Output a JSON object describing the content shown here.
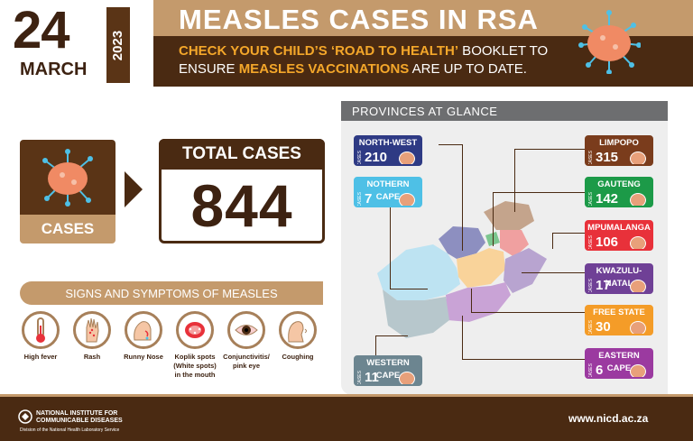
{
  "header": {
    "day": "24",
    "month": "MARCH",
    "year": "2023",
    "title": "MEASLES CASES IN RSA",
    "sub_line1_hl": "CHECK YOUR CHILD’S ‘ROAD TO HEALTH’",
    "sub_line1_rest": " BOOKLET TO",
    "sub_line2_a": "ENSURE ",
    "sub_line2_hl": "MEASLES VACCINATIONS",
    "sub_line2_rest": " ARE UP TO DATE."
  },
  "cases": {
    "label": "CASES",
    "total_label": "TOTAL CASES",
    "total_value": "844"
  },
  "symptoms": {
    "heading": "SIGNS AND SYMPTOMS OF MEASLES",
    "items": [
      {
        "label": "High fever",
        "icon": "thermometer-icon"
      },
      {
        "label": "Rash",
        "icon": "rash-hand-icon"
      },
      {
        "label": "Runny Nose",
        "icon": "runny-nose-icon"
      },
      {
        "label": "Koplik spots (White spots) in the mouth",
        "icon": "mouth-icon"
      },
      {
        "label": "Conjunctivitis/ pink eye",
        "icon": "eye-icon"
      },
      {
        "label": "Coughing",
        "icon": "coughing-icon"
      }
    ]
  },
  "provinces": {
    "heading": "PROVINCES AT GLANCE",
    "cases_word": "CASES",
    "items": [
      {
        "name": "NORTH-WEST",
        "cases": "210",
        "color": "#2e3a84"
      },
      {
        "name": "NOTHERN CAPE",
        "cases": "7",
        "color": "#4ec0e6"
      },
      {
        "name": "WESTERN CAPE",
        "cases": "11",
        "color": "#6c8590"
      },
      {
        "name": "LIMPOPO",
        "cases": "315",
        "color": "#7a3c1c"
      },
      {
        "name": "GAUTENG",
        "cases": "142",
        "color": "#1c9a48"
      },
      {
        "name": "MPUMALANGA",
        "cases": "106",
        "color": "#e8313a"
      },
      {
        "name": "KWAZULU-NATAL",
        "cases": "17",
        "color": "#6f4096"
      },
      {
        "name": "FREE STATE",
        "cases": "30",
        "color": "#f49c28"
      },
      {
        "name": "EASTERN CAPE",
        "cases": "6",
        "color": "#9b3aa0"
      }
    ]
  },
  "footer": {
    "org_line1": "NATIONAL INSTITUTE FOR",
    "org_line2": "COMMUNICABLE DISEASES",
    "org_line3": "Division of the National Health Laboratory Service",
    "url": "www.nicd.ac.za"
  },
  "colors": {
    "dark_brown": "#4a2a12",
    "tan": "#c49a6c",
    "orange": "#f4a72a"
  }
}
